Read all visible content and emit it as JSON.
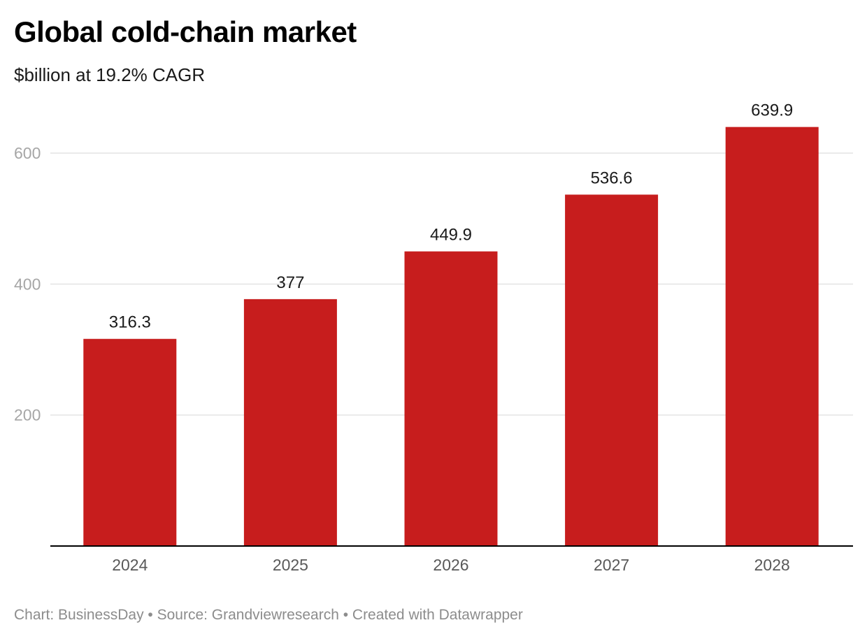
{
  "header": {
    "title": "Global cold-chain market",
    "subtitle": "$billion at 19.2% CAGR"
  },
  "footer": {
    "credit": "Chart: BusinessDay • Source: Grandviewresearch • Created with Datawrapper"
  },
  "colors": {
    "bar": "#c71d1d",
    "gridline": "#e3e3e3",
    "baseline": "#000000"
  },
  "chart_data": {
    "type": "bar",
    "title": "Global cold-chain market",
    "subtitle": "$billion at 19.2% CAGR",
    "categories": [
      "2024",
      "2025",
      "2026",
      "2027",
      "2028"
    ],
    "values": [
      316.3,
      377,
      449.9,
      536.6,
      639.9
    ],
    "data_labels": [
      "316.3",
      "377",
      "449.9",
      "536.6",
      "639.9"
    ],
    "yticks": [
      200,
      400,
      600
    ],
    "ylim": [
      0,
      640
    ],
    "xlabel": "",
    "ylabel": "",
    "grid": true,
    "legend": "none"
  }
}
